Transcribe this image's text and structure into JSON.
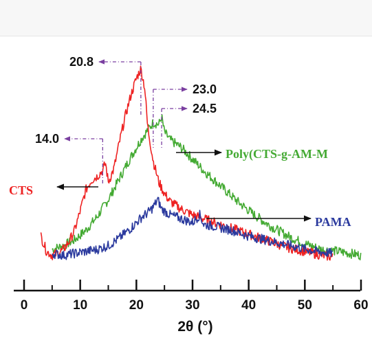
{
  "chart_data": {
    "type": "line",
    "title": "",
    "xlabel": "2θ (°)",
    "ylabel": "",
    "xlim": [
      0,
      60
    ],
    "x_ticks": [
      "0",
      "10",
      "20",
      "30",
      "40",
      "50",
      "60"
    ],
    "grid": false,
    "series": [
      {
        "name": "CTS",
        "color": "#ee2222",
        "x": [
          3,
          4,
          5,
          6,
          7,
          8,
          9,
          10,
          11,
          12,
          13,
          14,
          14.5,
          15,
          16,
          17,
          18,
          19,
          20,
          20.8,
          21.5,
          22,
          23,
          24,
          25,
          26,
          28,
          30,
          32,
          35,
          38,
          41,
          44,
          47,
          50,
          53,
          55
        ],
        "y": [
          0.13,
          0.05,
          0.03,
          0.04,
          0.06,
          0.1,
          0.16,
          0.26,
          0.37,
          0.42,
          0.44,
          0.47,
          0.51,
          0.41,
          0.48,
          0.62,
          0.75,
          0.86,
          0.95,
          1.0,
          0.9,
          0.7,
          0.52,
          0.41,
          0.35,
          0.31,
          0.27,
          0.24,
          0.22,
          0.19,
          0.16,
          0.13,
          0.1,
          0.07,
          0.05,
          0.03,
          0.02
        ]
      },
      {
        "name": "Poly(CTS-g-AM-M",
        "color": "#44aa33",
        "x": [
          5,
          7,
          9,
          11,
          13,
          15,
          17,
          19,
          21,
          22,
          23,
          24,
          24.5,
          25,
          26,
          28,
          30,
          32,
          35,
          38,
          41,
          44,
          47,
          50,
          53,
          56,
          60
        ],
        "y": [
          0.06,
          0.08,
          0.11,
          0.16,
          0.23,
          0.32,
          0.43,
          0.54,
          0.64,
          0.68,
          0.72,
          0.71,
          0.75,
          0.67,
          0.63,
          0.59,
          0.53,
          0.47,
          0.39,
          0.31,
          0.24,
          0.18,
          0.13,
          0.09,
          0.06,
          0.05,
          0.03
        ]
      },
      {
        "name": "PAMA",
        "color": "#2b3a9e",
        "x": [
          5,
          7,
          9,
          11,
          13,
          15,
          17,
          19,
          20,
          21,
          22,
          23,
          23.8,
          24.5,
          25,
          26,
          28,
          30,
          31.3,
          32,
          34,
          37,
          40,
          43,
          46,
          49,
          52,
          55
        ],
        "y": [
          0.04,
          0.03,
          0.04,
          0.05,
          0.06,
          0.08,
          0.12,
          0.17,
          0.2,
          0.23,
          0.25,
          0.28,
          0.32,
          0.27,
          0.26,
          0.24,
          0.22,
          0.2,
          0.24,
          0.19,
          0.18,
          0.16,
          0.13,
          0.11,
          0.09,
          0.07,
          0.05,
          0.04
        ]
      }
    ],
    "annotations": [
      {
        "label": "20.8",
        "x": 20.8
      },
      {
        "label": "23.0",
        "x": 23.0
      },
      {
        "label": "24.5",
        "x": 24.5
      },
      {
        "label": "14.0",
        "x": 14.0
      }
    ]
  }
}
